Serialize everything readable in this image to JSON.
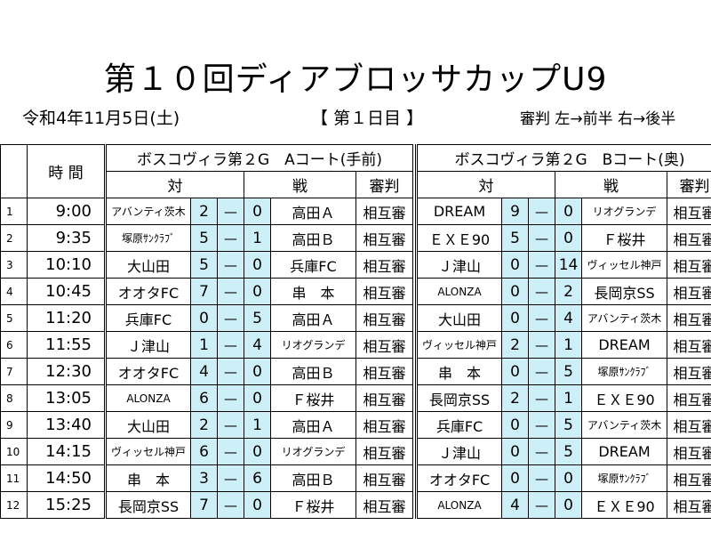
{
  "header": {
    "title": "第１０回ディアブロッサカップU9",
    "date": "令和4年11月5日(土)",
    "day": "【 第１日目 】",
    "referee_note": "審判  左→前半  右→後半"
  },
  "table": {
    "time_header": "時 間",
    "court_a_name": "ボスコヴィラ第２G　Aコート(手前)",
    "court_b_name": "ボスコヴィラ第２G　Bコート(奥)",
    "vs_label": "対",
    "match_label": "戦",
    "ref_label": "審判",
    "rows": [
      {
        "num": "1",
        "time": "9:00",
        "a": {
          "home": "アバンティ茨木",
          "hs": "2",
          "dash": "—",
          "as": "0",
          "away": "高田Ａ",
          "ref": "相互審"
        },
        "b": {
          "home": "DREAM",
          "hs": "9",
          "dash": "—",
          "as": "0",
          "away": "リオグランデ",
          "ref": "相互審"
        }
      },
      {
        "num": "2",
        "time": "9:35",
        "a": {
          "home": "塚原ｻﾝｸﾗﾌﾞ",
          "hs": "5",
          "dash": "—",
          "as": "1",
          "away": "高田Ｂ",
          "ref": "相互審"
        },
        "b": {
          "home": "ＥＸＥ90",
          "hs": "5",
          "dash": "—",
          "as": "0",
          "away": "Ｆ桜井",
          "ref": "相互審"
        }
      },
      {
        "num": "3",
        "time": "10:10",
        "a": {
          "home": "大山田",
          "hs": "5",
          "dash": "—",
          "as": "0",
          "away": "兵庫FC",
          "ref": "相互審"
        },
        "b": {
          "home": "Ｊ津山",
          "hs": "0",
          "dash": "—",
          "as": "14",
          "away": "ヴィッセル神戸",
          "ref": "相互審"
        }
      },
      {
        "num": "4",
        "time": "10:45",
        "a": {
          "home": "オオタFC",
          "hs": "7",
          "dash": "—",
          "as": "0",
          "away": "串　本",
          "ref": "相互審"
        },
        "b": {
          "home": "ALONZA",
          "hs": "0",
          "dash": "—",
          "as": "2",
          "away": "長岡京SS",
          "ref": "相互審"
        }
      },
      {
        "num": "5",
        "time": "11:20",
        "a": {
          "home": "兵庫FC",
          "hs": "0",
          "dash": "—",
          "as": "5",
          "away": "高田Ａ",
          "ref": "相互審"
        },
        "b": {
          "home": "大山田",
          "hs": "0",
          "dash": "—",
          "as": "4",
          "away": "アバンティ茨木",
          "ref": "相互審"
        }
      },
      {
        "num": "6",
        "time": "11:55",
        "a": {
          "home": "Ｊ津山",
          "hs": "1",
          "dash": "—",
          "as": "4",
          "away": "リオグランデ",
          "ref": "相互審"
        },
        "b": {
          "home": "ヴィッセル神戸",
          "hs": "2",
          "dash": "—",
          "as": "1",
          "away": "DREAM",
          "ref": "相互審"
        }
      },
      {
        "num": "7",
        "time": "12:30",
        "a": {
          "home": "オオタFC",
          "hs": "4",
          "dash": "—",
          "as": "0",
          "away": "高田Ｂ",
          "ref": "相互審"
        },
        "b": {
          "home": "串　本",
          "hs": "0",
          "dash": "—",
          "as": "5",
          "away": "塚原ｻﾝｸﾗﾌﾞ",
          "ref": "相互審"
        }
      },
      {
        "num": "8",
        "time": "13:05",
        "a": {
          "home": "ALONZA",
          "hs": "6",
          "dash": "—",
          "as": "0",
          "away": "Ｆ桜井",
          "ref": "相互審"
        },
        "b": {
          "home": "長岡京SS",
          "hs": "2",
          "dash": "—",
          "as": "1",
          "away": "ＥＸＥ90",
          "ref": "相互審"
        }
      },
      {
        "num": "9",
        "time": "13:40",
        "a": {
          "home": "大山田",
          "hs": "2",
          "dash": "—",
          "as": "1",
          "away": "高田Ａ",
          "ref": "相互審"
        },
        "b": {
          "home": "兵庫FC",
          "hs": "0",
          "dash": "—",
          "as": "5",
          "away": "アバンティ茨木",
          "ref": "相互審"
        }
      },
      {
        "num": "10",
        "time": "14:15",
        "a": {
          "home": "ヴィッセル神戸",
          "hs": "6",
          "dash": "—",
          "as": "0",
          "away": "リオグランデ",
          "ref": "相互審"
        },
        "b": {
          "home": "Ｊ津山",
          "hs": "0",
          "dash": "—",
          "as": "5",
          "away": "DREAM",
          "ref": "相互審"
        }
      },
      {
        "num": "11",
        "time": "14:50",
        "a": {
          "home": "串　本",
          "hs": "3",
          "dash": "—",
          "as": "6",
          "away": "高田Ｂ",
          "ref": "相互審"
        },
        "b": {
          "home": "オオタFC",
          "hs": "0",
          "dash": "—",
          "as": "0",
          "away": "塚原ｻﾝｸﾗﾌﾞ",
          "ref": "相互審"
        }
      },
      {
        "num": "12",
        "time": "15:25",
        "a": {
          "home": "長岡京SS",
          "hs": "7",
          "dash": "—",
          "as": "0",
          "away": "Ｆ桜井",
          "ref": "相互審"
        },
        "b": {
          "home": "ALONZA",
          "hs": "4",
          "dash": "—",
          "as": "0",
          "away": "ＥＸＥ90",
          "ref": "相互審"
        }
      }
    ]
  },
  "colors": {
    "score_bg": "#cdeff7"
  }
}
